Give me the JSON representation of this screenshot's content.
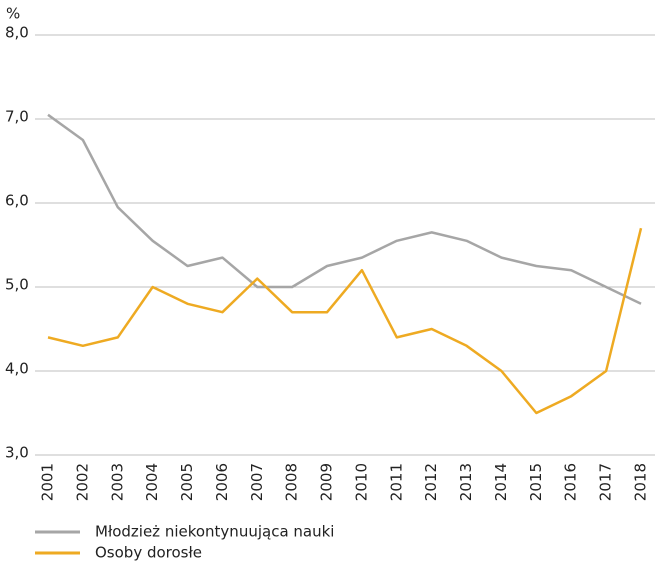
{
  "chart_data": {
    "type": "line",
    "y_unit_label": "%",
    "categories": [
      "2001",
      "2002",
      "2003",
      "2004",
      "2005",
      "2006",
      "2007",
      "2008",
      "2009",
      "2010",
      "2011",
      "2012",
      "2013",
      "2014",
      "2015",
      "2016",
      "2017",
      "2018"
    ],
    "series": [
      {
        "name": "Młodzież niekontynuująca nauki",
        "color": "#a6a6a6",
        "values": [
          7.05,
          6.75,
          5.95,
          5.55,
          5.25,
          5.35,
          5.0,
          5.0,
          5.25,
          5.35,
          5.55,
          5.65,
          5.55,
          5.35,
          5.25,
          5.2,
          5.0,
          4.8
        ]
      },
      {
        "name": "Osoby dorosłe",
        "color": "#eeaa22",
        "values": [
          4.4,
          4.3,
          4.4,
          5.0,
          4.8,
          4.7,
          5.1,
          4.7,
          4.7,
          5.2,
          4.4,
          4.5,
          4.3,
          4.0,
          3.5,
          3.7,
          4.0,
          5.7
        ]
      }
    ],
    "ylim": [
      3.0,
      8.0
    ],
    "yticks": [
      {
        "value": 3.0,
        "label": "3,0"
      },
      {
        "value": 4.0,
        "label": "4,0"
      },
      {
        "value": 5.0,
        "label": "5,0"
      },
      {
        "value": 6.0,
        "label": "6,0"
      },
      {
        "value": 7.0,
        "label": "7,0"
      },
      {
        "value": 8.0,
        "label": "8,0"
      }
    ],
    "grid": true
  }
}
